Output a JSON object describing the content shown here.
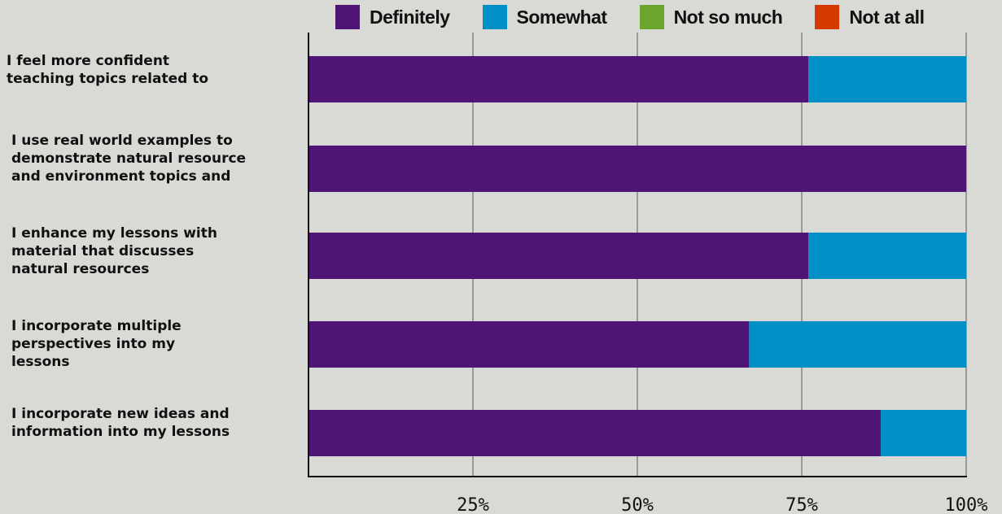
{
  "chart_data": {
    "type": "bar",
    "orientation": "horizontal",
    "stacked": true,
    "categories": [
      "I feel more confident\nteaching topics related to",
      "I use real world examples to\ndemonstrate natural resource\nand environment topics and",
      "I enhance my lessons with\nmaterial that discusses\nnatural resources",
      "I incorporate multiple\nperspectives into my\nlessons",
      "I incorporate new ideas and\ninformation into my lessons"
    ],
    "series": [
      {
        "name": "Definitely",
        "color": "#4e1577",
        "values": [
          76,
          100,
          76,
          67,
          87
        ]
      },
      {
        "name": "Somewhat",
        "color": "#0190c5",
        "values": [
          24,
          0,
          24,
          33,
          13
        ]
      },
      {
        "name": "Not so much",
        "color": "#6aa52e",
        "values": [
          0,
          0,
          0,
          0,
          0
        ]
      },
      {
        "name": "Not at all",
        "color": "#d43a00",
        "values": [
          0,
          0,
          0,
          0,
          0
        ]
      }
    ],
    "xlim": [
      0,
      100
    ],
    "xticks": [
      25,
      50,
      75,
      100
    ],
    "xtick_labels": [
      "25%",
      "50%",
      "75%",
      "100%"
    ],
    "grid": "vertical",
    "legend_position": "top"
  }
}
